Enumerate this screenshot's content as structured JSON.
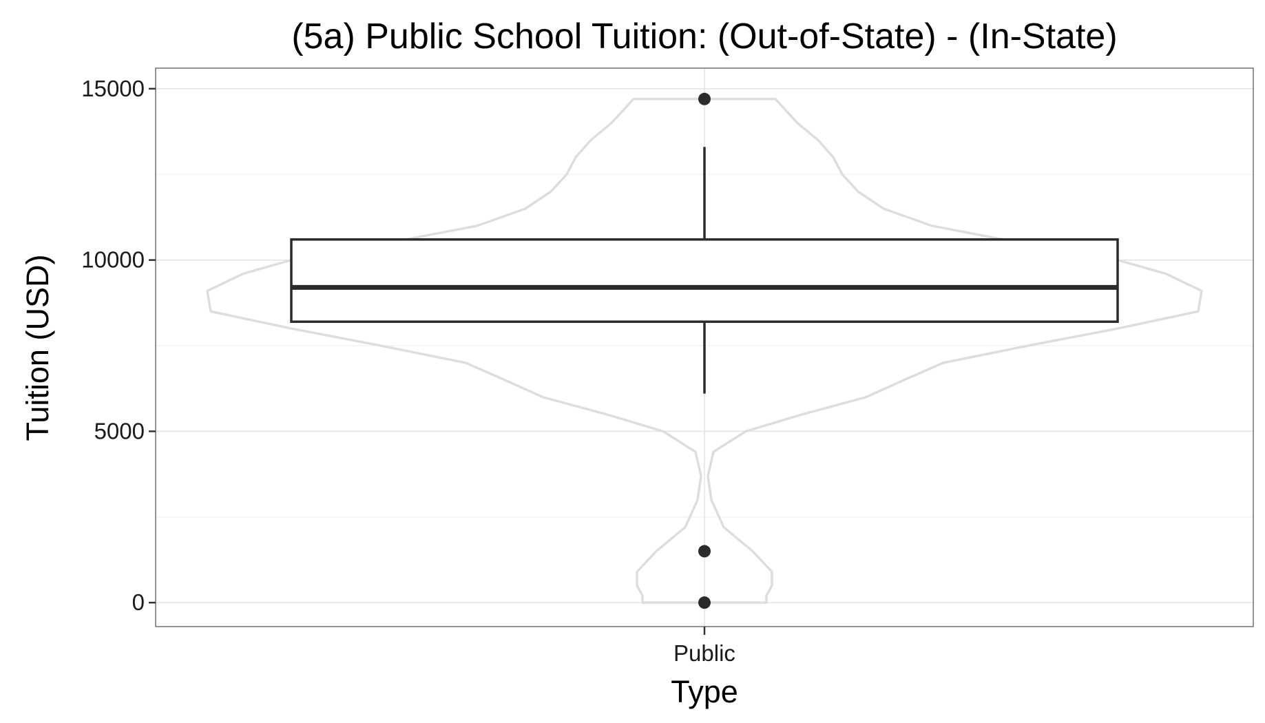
{
  "chart_data": {
    "type": "violin+box",
    "title": "(5a) Public School Tuition: (Out-of-State) - (In-State)",
    "xlabel": "Type",
    "ylabel": "Tuition (USD)",
    "categories": [
      "Public"
    ],
    "ylim": [
      -700,
      15600
    ],
    "yticks": [
      0,
      5000,
      10000,
      15000
    ],
    "y_tick_labels": [
      "0",
      "5000",
      "10000",
      "15000"
    ],
    "grid": true,
    "box": {
      "category": "Public",
      "q1": 8200,
      "median": 9200,
      "q3": 10600,
      "whisker_low": 6100,
      "whisker_high": 13300
    },
    "outliers": [
      {
        "category": "Public",
        "value": 14700
      },
      {
        "category": "Public",
        "value": 1500
      },
      {
        "category": "Public",
        "value": 0
      }
    ],
    "violin_density": [
      {
        "value": 0,
        "width": 0.09
      },
      {
        "value": 200,
        "width": 0.09
      },
      {
        "value": 500,
        "width": 0.098
      },
      {
        "value": 900,
        "width": 0.098
      },
      {
        "value": 1500,
        "width": 0.07
      },
      {
        "value": 2200,
        "width": 0.028
      },
      {
        "value": 3000,
        "width": 0.01
      },
      {
        "value": 3700,
        "width": 0.005
      },
      {
        "value": 4400,
        "width": 0.013
      },
      {
        "value": 5000,
        "width": 0.06
      },
      {
        "value": 5500,
        "width": 0.143
      },
      {
        "value": 6000,
        "width": 0.235
      },
      {
        "value": 6500,
        "width": 0.29
      },
      {
        "value": 7000,
        "width": 0.347
      },
      {
        "value": 7500,
        "width": 0.47
      },
      {
        "value": 8000,
        "width": 0.6
      },
      {
        "value": 8500,
        "width": 0.717
      },
      {
        "value": 9100,
        "width": 0.722
      },
      {
        "value": 9600,
        "width": 0.67
      },
      {
        "value": 10000,
        "width": 0.6
      },
      {
        "value": 10500,
        "width": 0.46
      },
      {
        "value": 11000,
        "width": 0.33
      },
      {
        "value": 11500,
        "width": 0.26
      },
      {
        "value": 12000,
        "width": 0.223
      },
      {
        "value": 12500,
        "width": 0.2
      },
      {
        "value": 13000,
        "width": 0.187
      },
      {
        "value": 13500,
        "width": 0.165
      },
      {
        "value": 14000,
        "width": 0.135
      },
      {
        "value": 14700,
        "width": 0.103
      }
    ],
    "colors": {
      "violin_stroke": "#dddddd",
      "box_stroke": "#2b2b2b",
      "point": "#2b2b2b",
      "grid_major": "#e3e3e3",
      "grid_minor": "#f3f3f3",
      "panel_border": "#707070"
    }
  }
}
